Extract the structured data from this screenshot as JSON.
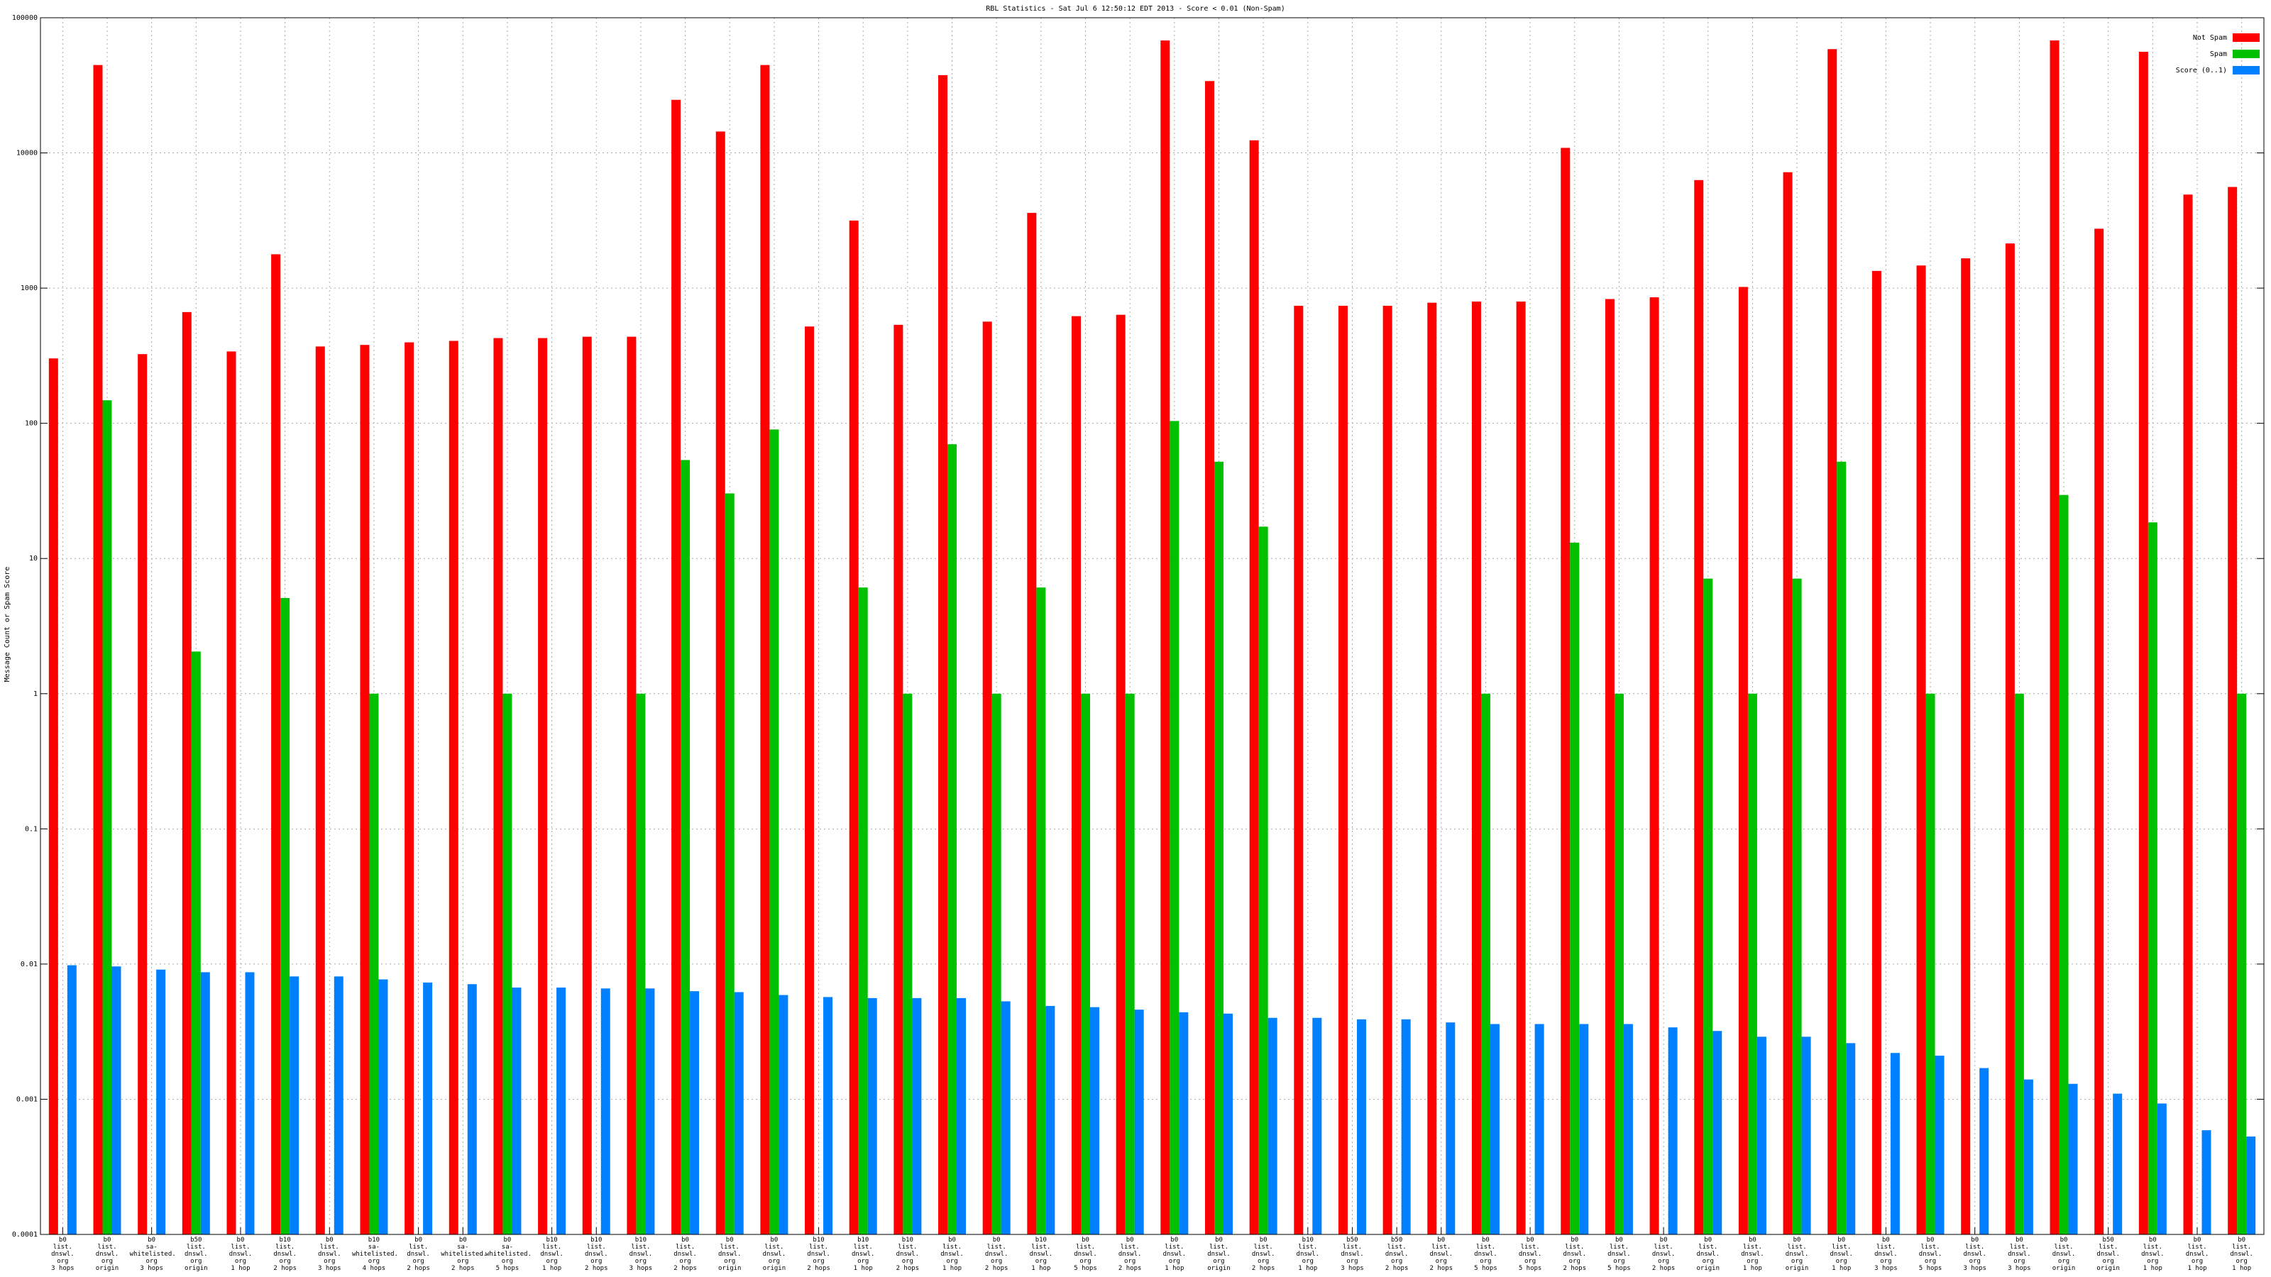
{
  "chart_data": {
    "type": "bar",
    "title": "RBL Statistics - Sat Jul  6 12:50:12 EDT 2013 - Score < 0.01 (Non-Spam)",
    "y_label": "Message Count or Spam Score",
    "log_scale": true,
    "grid": true,
    "legend": "top right",
    "ylim": [
      0.0001,
      100000
    ],
    "yticks": [
      0.0001,
      0.001,
      0.01,
      0.1,
      1,
      10,
      100,
      1000,
      10000,
      100000
    ],
    "categories": [
      "b0\nlist.\ndnswl.\norg\n3 hops",
      "b0\nlist.\ndnswl.\norg\norigin",
      "b0\nsa-\nwhitelisted.\norg\n3 hops",
      "b50\nlist.\ndnswl.\norg\norigin",
      "b0\nlist.\ndnswl.\norg\n1 hop",
      "b10\nlist.\ndnswl.\norg\n2 hops",
      "b0\nlist.\ndnswl.\norg\n3 hops",
      "b10\nsa-\nwhitelisted.\norg\n4 hops",
      "b0\nlist.\ndnswl.\norg\n2 hops",
      "b0\nsa-\nwhitelisted.\norg\n2 hops",
      "b0\nsa-\nwhitelisted.\norg\n5 hops",
      "b10\nlist.\ndnswl.\norg\n1 hop",
      "b10\nlist.\ndnswl.\norg\n2 hops",
      "b10\nlist.\ndnswl.\norg\n3 hops",
      "b0\nlist.\ndnswl.\norg\n2 hops",
      "b0\nlist.\ndnswl.\norg\norigin",
      "b0\nlist.\ndnswl.\norg\norigin",
      "b10\nlist.\ndnswl.\norg\n2 hops",
      "b10\nlist.\ndnswl.\norg\n1 hop",
      "b10\nlist.\ndnswl.\norg\n2 hops",
      "b0\nlist.\ndnswl.\norg\n1 hop",
      "b0\nlist.\ndnswl.\norg\n2 hops",
      "b10\nlist.\ndnswl.\norg\n1 hop",
      "b0\nlist.\ndnswl.\norg\n5 hops",
      "b0\nlist.\ndnswl.\norg\n2 hops",
      "b0\nlist.\ndnswl.\norg\n1 hop",
      "b0\nlist.\ndnswl.\norg\norigin",
      "b0\nlist.\ndnswl.\norg\n2 hops",
      "b10\nlist.\ndnswl.\norg\n1 hop",
      "b50\nlist.\ndnswl.\norg\n3 hops",
      "b50\nlist.\ndnswl.\norg\n2 hops",
      "b0\nlist.\ndnswl.\norg\n2 hops",
      "b0\nlist.\ndnswl.\norg\n5 hops",
      "b0\nlist.\ndnswl.\norg\n5 hops",
      "b0\nlist.\ndnswl.\norg\n2 hops",
      "b0\nlist.\ndnswl.\norg\n5 hops",
      "b0\nlist.\ndnswl.\norg\n2 hops",
      "b0\nlist.\ndnswl.\norg\norigin",
      "b0\nlist.\ndnswl.\norg\n1 hop",
      "b0\nlist.\ndnswl.\norg\norigin",
      "b0\nlist.\ndnswl.\norg\n1 hop",
      "b0\nlist.\ndnswl.\norg\n3 hops",
      "b0\nlist.\ndnswl.\norg\n5 hops",
      "b0\nlist.\ndnswl.\norg\n3 hops",
      "b0\nlist.\ndnswl.\norg\n3 hops",
      "b0\nlist.\ndnswl.\norg\norigin",
      "b50\nlist.\ndnswl.\norg\norigin",
      "b0\nlist.\ndnswl.\norg\n1 hop",
      "b0\nlist.\ndnswl.\norg\n1 hop",
      "b0\nlist.\ndnswl.\norg\n1 hop"
    ],
    "series": [
      {
        "name": "Not Spam",
        "color": "#ff0000",
        "values": [
          302,
          44700,
          325,
          665,
          340,
          1780,
          370,
          380,
          397,
          407,
          427,
          427,
          437,
          437,
          24700,
          14400,
          44700,
          520,
          3160,
          535,
          37600,
          565,
          3600,
          620,
          635,
          67900,
          34000,
          12400,
          740,
          740,
          740,
          780,
          795,
          795,
          10900,
          830,
          855,
          6300,
          1020,
          7200,
          58600,
          1340,
          1470,
          1660,
          2140,
          67900,
          2750,
          56000,
          4920,
          5600
        ]
      },
      {
        "name": "Spam",
        "color": "#00c000",
        "values": [
          null,
          148,
          null,
          2.05,
          null,
          5.1,
          null,
          1,
          null,
          null,
          1,
          null,
          null,
          1,
          53.5,
          30.3,
          90,
          null,
          6.1,
          1,
          70,
          1,
          6.1,
          1,
          1,
          104,
          52,
          17.2,
          null,
          null,
          null,
          null,
          1,
          null,
          13.1,
          1,
          null,
          7.1,
          1,
          7.1,
          52,
          null,
          1,
          null,
          1,
          29.5,
          null,
          18.5,
          null,
          1
        ]
      },
      {
        "name": "Score (0..1)",
        "color": "#0080ff",
        "values": [
          0.0098,
          0.0096,
          0.0091,
          0.0087,
          0.0087,
          0.0081,
          0.0081,
          0.0077,
          0.0073,
          0.0071,
          0.0067,
          0.0067,
          0.0066,
          0.0066,
          0.0063,
          0.0062,
          0.0059,
          0.0057,
          0.0056,
          0.0056,
          0.0056,
          0.0053,
          0.0049,
          0.0048,
          0.0046,
          0.0044,
          0.0043,
          0.004,
          0.004,
          0.0039,
          0.0039,
          0.0037,
          0.0036,
          0.0036,
          0.0036,
          0.0036,
          0.0034,
          0.0032,
          0.0029,
          0.0029,
          0.0026,
          0.0022,
          0.0021,
          0.0017,
          0.0014,
          0.0013,
          0.0011,
          0.00093,
          0.00059,
          0.00053
        ]
      }
    ]
  }
}
